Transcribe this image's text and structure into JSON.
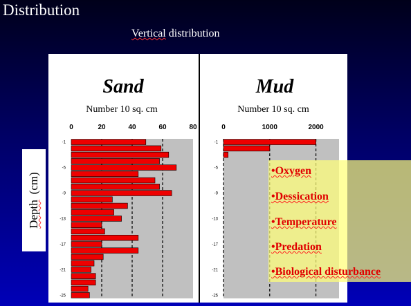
{
  "slide": {
    "title": "Distribution",
    "subtitle_underlined": "Vertical",
    "subtitle_rest": "distribution",
    "y_axis_label_underlined": "Depth",
    "y_axis_label_rest": "(cm)"
  },
  "chart_data": [
    {
      "type": "bar",
      "orientation": "horizontal",
      "title": "Sand",
      "xlabel": "Number 10 sq. cm",
      "ylabel": "Depth (cm)",
      "xlim": [
        0,
        80
      ],
      "xticks": [
        "0",
        "20",
        "40",
        "60",
        "80"
      ],
      "yticks": [
        "-1",
        "-5",
        "-9",
        "-13",
        "-17",
        "-21",
        "-25"
      ],
      "categories": [
        -1,
        -2,
        -3,
        -4,
        -5,
        -6,
        -7,
        -8,
        -9,
        -10,
        -11,
        -12,
        -13,
        -14,
        -15,
        -16,
        -17,
        -18,
        -19,
        -20,
        -21,
        -22,
        -23,
        -24,
        -25
      ],
      "values": [
        49,
        59,
        64,
        58,
        69,
        44,
        55,
        58,
        66,
        27,
        37,
        28,
        33,
        20,
        22,
        44,
        20,
        44,
        21,
        15,
        13,
        16,
        16,
        11,
        12
      ],
      "grid": "dashed vertical lines at 20, 40, 60",
      "bar_color": "#ee0000",
      "plot_background": "#c0c0c0"
    },
    {
      "type": "bar",
      "orientation": "horizontal",
      "title": "Mud",
      "xlabel": "Number 10 sq. cm",
      "ylabel": "Depth (cm)",
      "xlim": [
        0,
        2500
      ],
      "xticks": [
        "0",
        "1000",
        "2000"
      ],
      "yticks": [
        "-1",
        "-5",
        "-9",
        "-13",
        "-17",
        "-21",
        "-25"
      ],
      "categories": [
        -1,
        -2,
        -3,
        -4,
        -5,
        -6,
        -7,
        -8,
        -9,
        -10,
        -11,
        -12,
        -13,
        -14,
        -15,
        -16,
        -17,
        -18,
        -19,
        -20,
        -21,
        -22,
        -23,
        -24,
        -25
      ],
      "values": [
        2000,
        1000,
        100,
        0,
        0,
        0,
        0,
        0,
        0,
        0,
        0,
        0,
        0,
        0,
        0,
        0,
        0,
        0,
        0,
        0,
        0,
        0,
        0,
        0,
        0
      ],
      "grid": "dashed vertical lines at 0, 1000, 2000",
      "bar_color": "#ee0000",
      "plot_background": "#c0c0c0"
    }
  ],
  "factors": [
    "•Oxygen",
    "•Dessication",
    "•Temperature",
    "•Predation",
    "•Biological disturbance"
  ]
}
